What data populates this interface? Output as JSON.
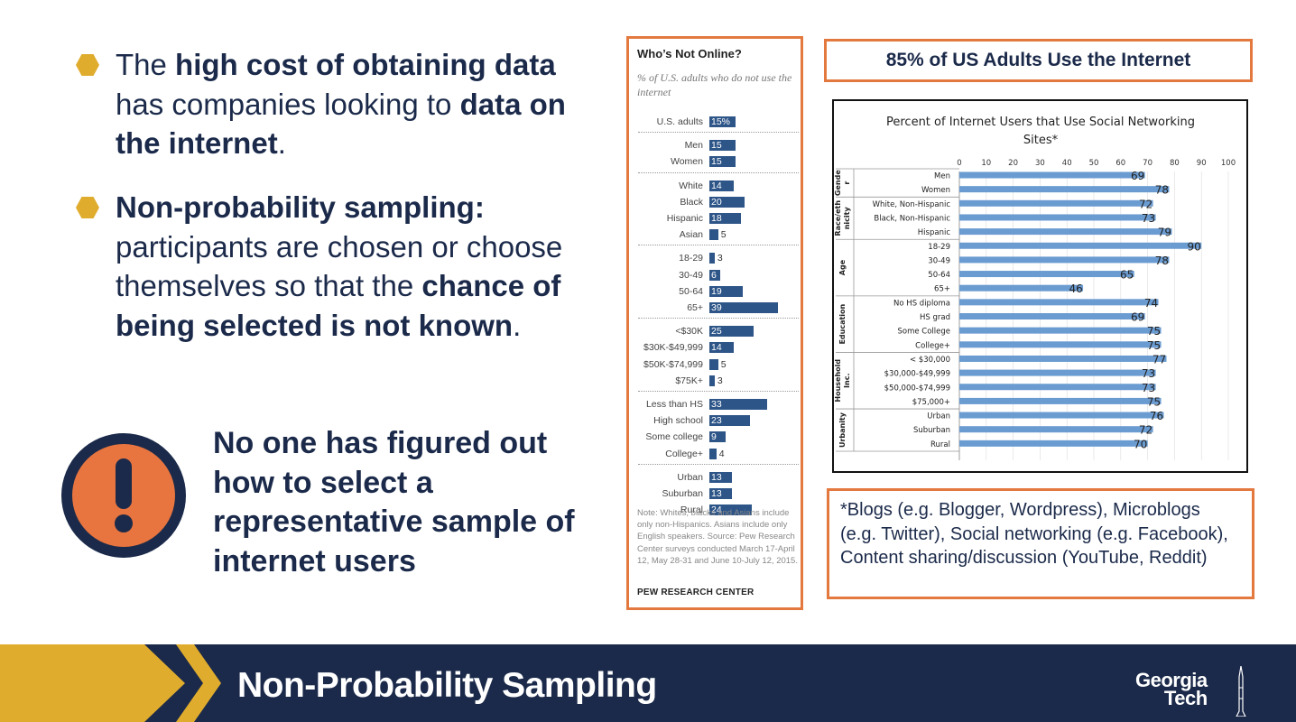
{
  "slide": {
    "bullets": [
      {
        "parts": [
          {
            "t": "The ",
            "b": false
          },
          {
            "t": "high cost of obtaining data",
            "b": true
          },
          {
            "t": " has companies looking to ",
            "b": false
          },
          {
            "t": "data on the internet",
            "b": true
          },
          {
            "t": ".",
            "b": false
          }
        ]
      },
      {
        "parts": [
          {
            "t": "Non-probability sampling:",
            "b": true
          },
          {
            "t": " participants are chosen or choose themselves so that the ",
            "b": false
          },
          {
            "t": "chance of being selected is not known",
            "b": true
          },
          {
            "t": ".",
            "b": false
          }
        ]
      }
    ],
    "alert_text": "No one has figured out how to select a representative sample of internet users",
    "headline": "85% of US Adults Use the Internet",
    "footnote": "*Blogs (e.g. Blogger, Wordpress), Microblogs (e.g. Twitter), Social networking (e.g. Facebook), Content sharing/discussion (YouTube, Reddit)",
    "banner_title": "Non-Probability Sampling",
    "logo_line1": "Georgia",
    "logo_line2": "Tech",
    "colors": {
      "navy": "#1b2a4a",
      "gold": "#e0ac2e",
      "orange": "#e3793f",
      "bar": "#2d5588",
      "chart_bar": "#6a9bd1"
    }
  },
  "pew": {
    "title": "Who’s Not Online?",
    "subtitle": "% of U.S. adults who do not use the internet",
    "groups": [
      [
        {
          "label": "U.S. adults",
          "value": 15,
          "display": "15%"
        }
      ],
      [
        {
          "label": "Men",
          "value": 15,
          "display": "15"
        },
        {
          "label": "Women",
          "value": 15,
          "display": "15"
        }
      ],
      [
        {
          "label": "White",
          "value": 14,
          "display": "14"
        },
        {
          "label": "Black",
          "value": 20,
          "display": "20"
        },
        {
          "label": "Hispanic",
          "value": 18,
          "display": "18"
        },
        {
          "label": "Asian",
          "value": 5,
          "display": "5"
        }
      ],
      [
        {
          "label": "18-29",
          "value": 3,
          "display": "3"
        },
        {
          "label": "30-49",
          "value": 6,
          "display": "6"
        },
        {
          "label": "50-64",
          "value": 19,
          "display": "19"
        },
        {
          "label": "65+",
          "value": 39,
          "display": "39"
        }
      ],
      [
        {
          "label": "<$30K",
          "value": 25,
          "display": "25"
        },
        {
          "label": "$30K-$49,999",
          "value": 14,
          "display": "14"
        },
        {
          "label": "$50K-$74,999",
          "value": 5,
          "display": "5"
        },
        {
          "label": "$75K+",
          "value": 3,
          "display": "3"
        }
      ],
      [
        {
          "label": "Less than HS",
          "value": 33,
          "display": "33"
        },
        {
          "label": "High school",
          "value": 23,
          "display": "23"
        },
        {
          "label": "Some college",
          "value": 9,
          "display": "9"
        },
        {
          "label": "College+",
          "value": 4,
          "display": "4"
        }
      ],
      [
        {
          "label": "Urban",
          "value": 13,
          "display": "13"
        },
        {
          "label": "Suburban",
          "value": 13,
          "display": "13"
        },
        {
          "label": "Rural",
          "value": 24,
          "display": "24"
        }
      ]
    ],
    "note": "Note: Whites, blacks and Asians include only non-Hispanics. Asians include only English speakers. Source: Pew Research Center surveys conducted March 17-April 12, May 28-31 and June 10-July 12, 2015.",
    "source": "PEW RESEARCH CENTER"
  },
  "chart_data": {
    "type": "bar",
    "orientation": "horizontal",
    "title": "Percent of Internet Users that Use Social Networking Sites*",
    "xlim": [
      0,
      100
    ],
    "xticks": [
      0,
      10,
      20,
      30,
      40,
      50,
      60,
      70,
      80,
      90,
      100
    ],
    "groups": [
      {
        "name": "Gender",
        "categories": [
          "Men",
          "Women"
        ],
        "values": [
          69,
          78
        ]
      },
      {
        "name": "Race/ethnicity",
        "categories": [
          "White, Non-Hispanic",
          "Black, Non-Hispanic",
          "Hispanic"
        ],
        "values": [
          72,
          73,
          79
        ]
      },
      {
        "name": "Age",
        "categories": [
          "18-29",
          "30-49",
          "50-64",
          "65+"
        ],
        "values": [
          90,
          78,
          65,
          46
        ]
      },
      {
        "name": "Education",
        "categories": [
          "No HS diploma",
          "HS grad",
          "Some College",
          "College+"
        ],
        "values": [
          74,
          69,
          75,
          75
        ]
      },
      {
        "name": "Household Inc.",
        "categories": [
          "< $30,000",
          "$30,000-$49,999",
          "$50,000-$74,999",
          "$75,000+"
        ],
        "values": [
          77,
          73,
          73,
          75
        ]
      },
      {
        "name": "Urbanity",
        "categories": [
          "Urban",
          "Suburban",
          "Rural"
        ],
        "values": [
          76,
          72,
          70
        ]
      }
    ],
    "group_labels_display": [
      [
        "Gende",
        "r"
      ],
      [
        "Race/eth",
        "nicity"
      ],
      [
        "Age"
      ],
      [
        "Education"
      ],
      [
        "Household",
        "Inc."
      ],
      [
        "Urbanity"
      ]
    ]
  }
}
